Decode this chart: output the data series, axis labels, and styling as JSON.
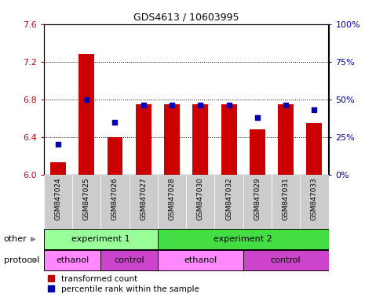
{
  "title": "GDS4613 / 10603995",
  "samples": [
    "GSM847024",
    "GSM847025",
    "GSM847026",
    "GSM847027",
    "GSM847028",
    "GSM847030",
    "GSM847032",
    "GSM847029",
    "GSM847031",
    "GSM847033"
  ],
  "bar_values": [
    6.13,
    7.28,
    6.4,
    6.75,
    6.75,
    6.75,
    6.75,
    6.48,
    6.75,
    6.55
  ],
  "bar_bottom": 6.0,
  "dot_values_pct": [
    20,
    50,
    35,
    46,
    46,
    46,
    46,
    38,
    46,
    43
  ],
  "ylim_left": [
    6.0,
    7.6
  ],
  "ylim_right": [
    0,
    100
  ],
  "yticks_left": [
    6.0,
    6.4,
    6.8,
    7.2,
    7.6
  ],
  "yticks_right": [
    0,
    25,
    50,
    75,
    100
  ],
  "ytick_labels_right": [
    "0%",
    "25%",
    "50%",
    "75%",
    "100%"
  ],
  "bar_color": "#cc0000",
  "dot_color": "#0000bb",
  "tick_label_color_left": "#cc0000",
  "tick_label_color_right": "#0000bb",
  "groups": [
    {
      "label": "experiment 1",
      "start": 0,
      "end": 3,
      "color": "#99ff99"
    },
    {
      "label": "experiment 2",
      "start": 4,
      "end": 9,
      "color": "#44dd44"
    }
  ],
  "protocols": [
    {
      "label": "ethanol",
      "start": 0,
      "end": 1,
      "color": "#ff88ff"
    },
    {
      "label": "control",
      "start": 2,
      "end": 3,
      "color": "#cc44cc"
    },
    {
      "label": "ethanol",
      "start": 4,
      "end": 6,
      "color": "#ff88ff"
    },
    {
      "label": "control",
      "start": 7,
      "end": 9,
      "color": "#cc44cc"
    }
  ],
  "other_label": "other",
  "protocol_label": "protocol",
  "legend_items": [
    {
      "label": "transformed count",
      "color": "#cc0000"
    },
    {
      "label": "percentile rank within the sample",
      "color": "#0000bb"
    }
  ],
  "bar_width": 0.55,
  "dot_marker": "s",
  "dot_size": 22,
  "xtick_bg": "#cccccc",
  "spine_color": "#888888"
}
